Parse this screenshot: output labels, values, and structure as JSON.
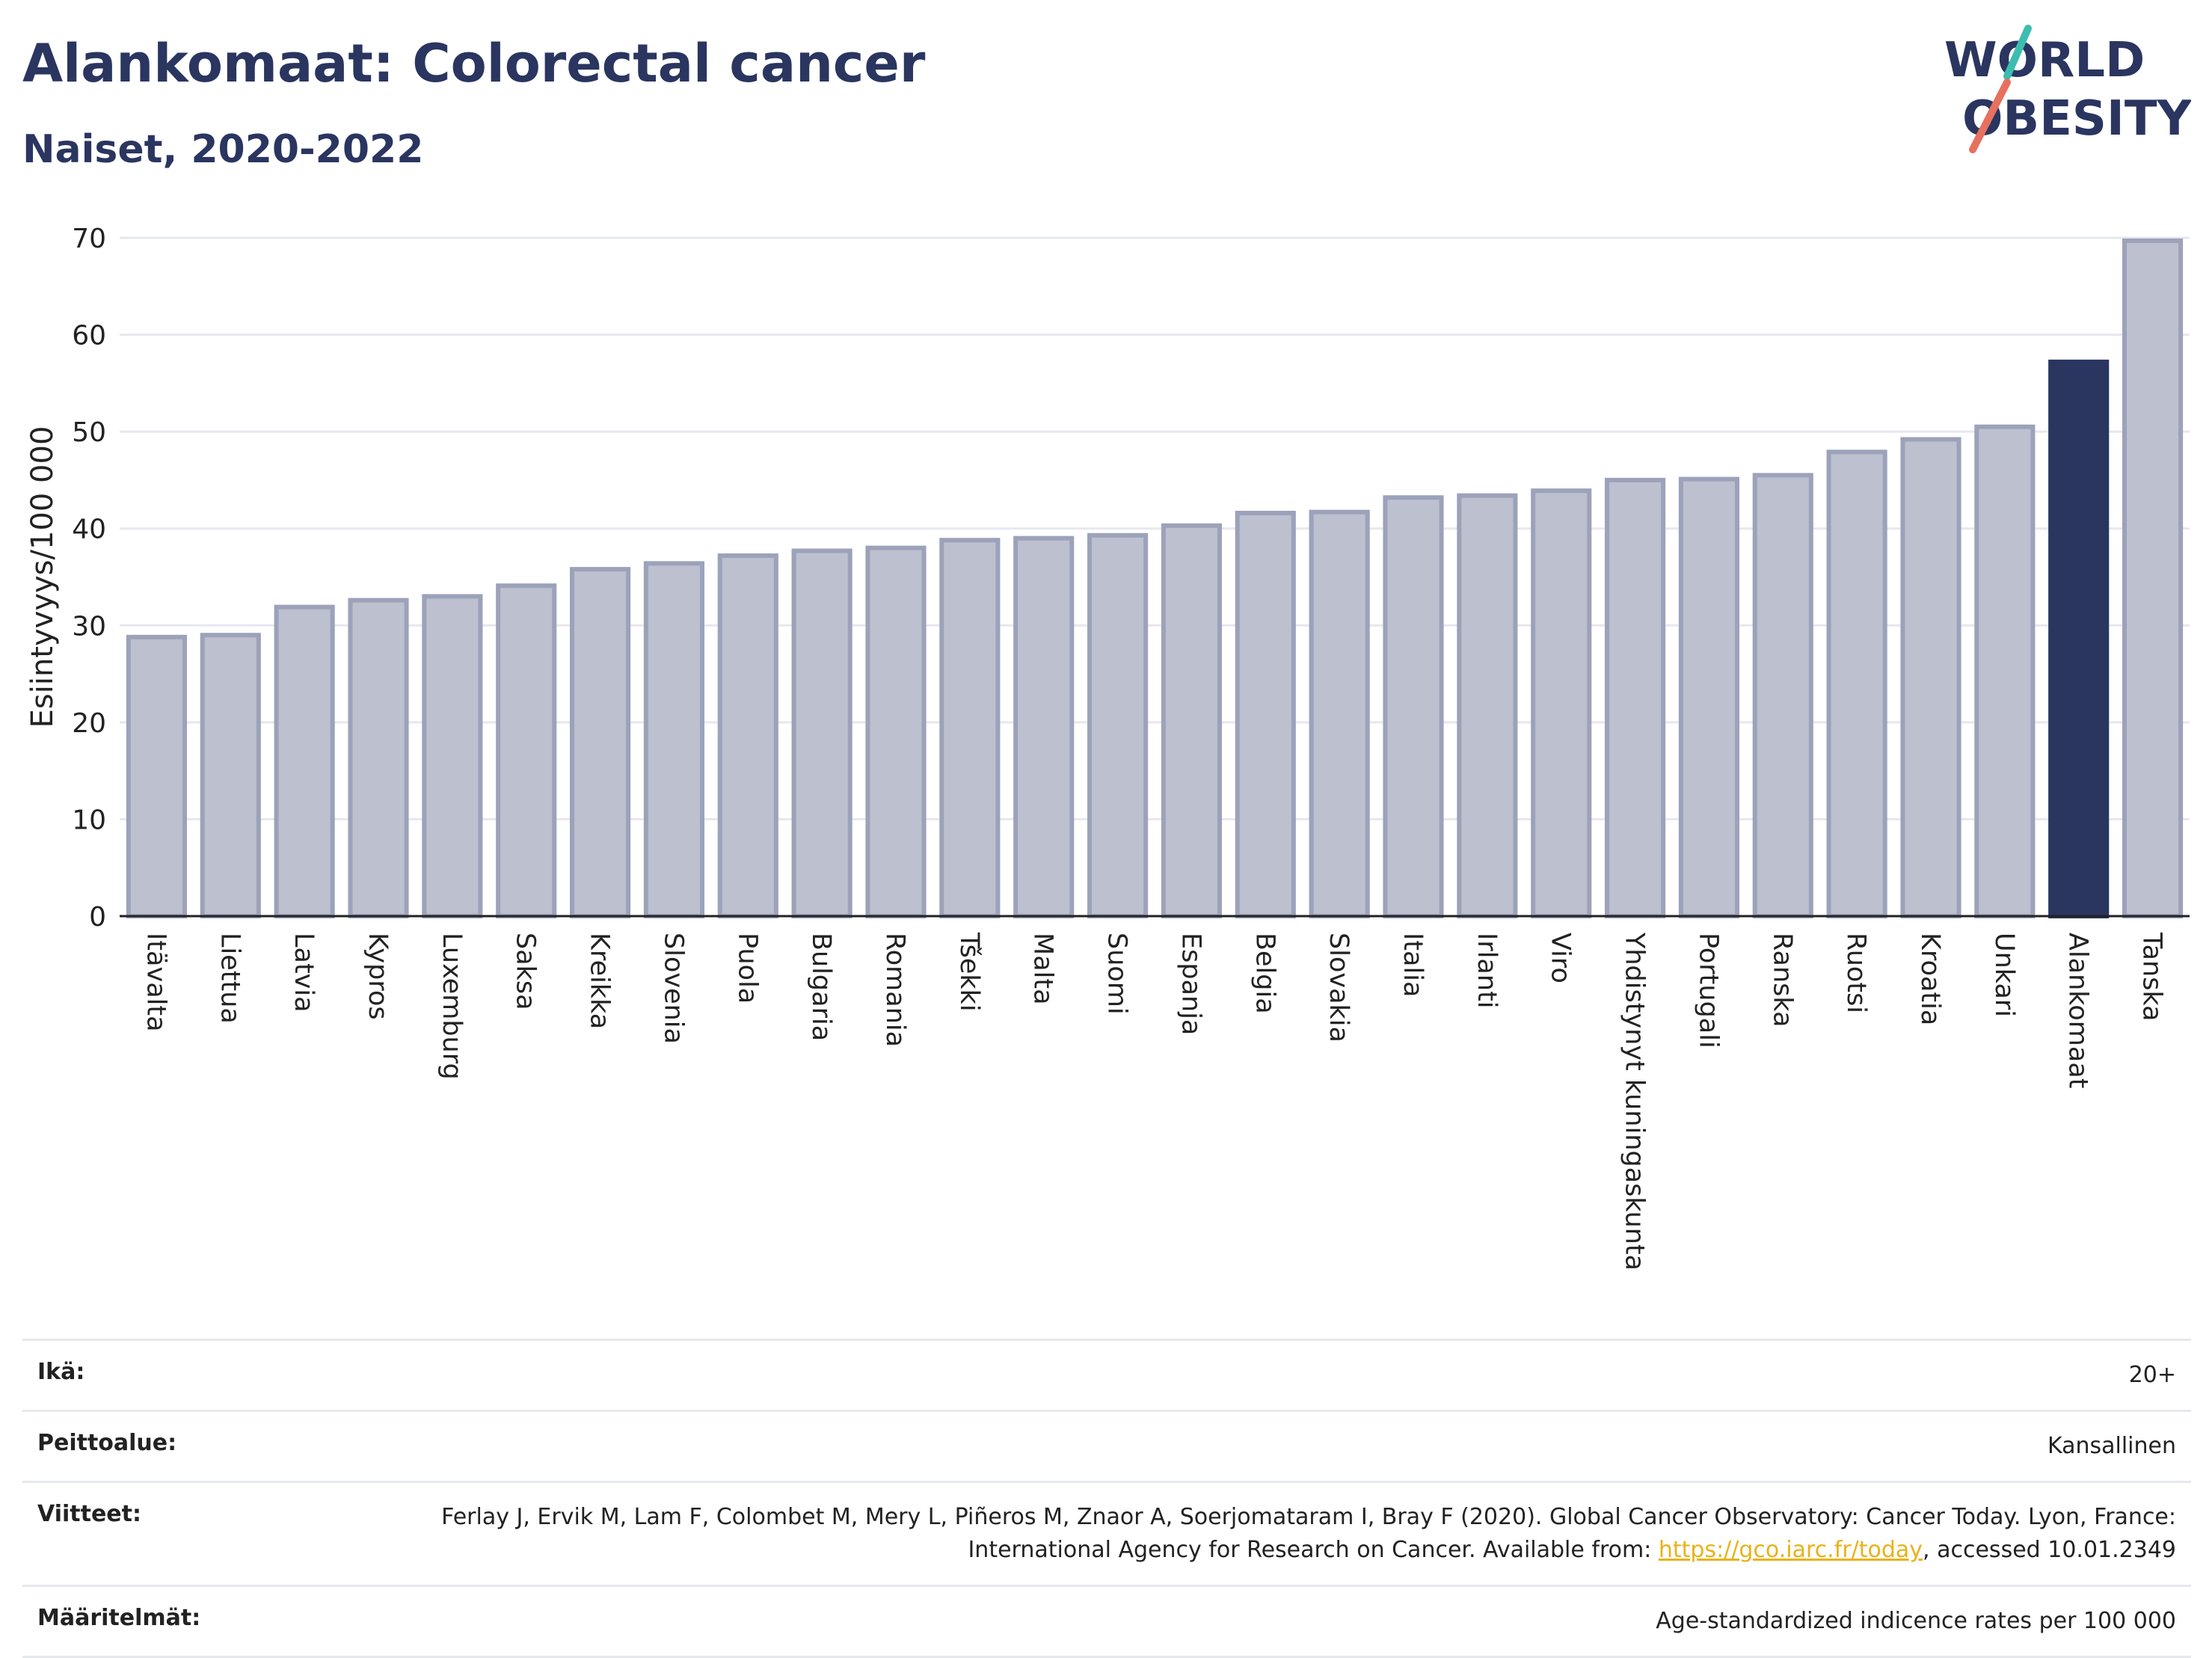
{
  "header": {
    "title": "Alankomaat: Colorectal cancer",
    "subtitle": "Naiset, 2020-2022"
  },
  "logo": {
    "line1": "WORLD",
    "line2": "OBESITY",
    "accent_teal": "#3dbdb0",
    "accent_red": "#e8705e"
  },
  "colors": {
    "bar_default": "#bcc0cf",
    "bar_border": "#9ca2ba",
    "bar_highlight": "#2a3560",
    "text": "#2a3560"
  },
  "chart_data": {
    "type": "bar",
    "title": "Alankomaat: Colorectal cancer",
    "subtitle": "Naiset, 2020-2022",
    "ylabel": "Esiintyvyys/100 000",
    "xlabel": "",
    "ylim": [
      0,
      70
    ],
    "yticks": [
      0,
      10,
      20,
      30,
      40,
      50,
      60,
      70
    ],
    "grid": true,
    "highlight": "Alankomaat",
    "categories": [
      "Itävalta",
      "Liettua",
      "Latvia",
      "Kypros",
      "Luxemburg",
      "Saksa",
      "Kreikka",
      "Slovenia",
      "Puola",
      "Bulgaria",
      "Romania",
      "Tšekki",
      "Malta",
      "Suomi",
      "Espanja",
      "Belgia",
      "Slovakia",
      "Italia",
      "Irlanti",
      "Viro",
      "Yhdistynyt kuningaskunta",
      "Portugali",
      "Ranska",
      "Ruotsi",
      "Kroatia",
      "Unkari",
      "Alankomaat",
      "Tanska"
    ],
    "values": [
      28.8,
      29.0,
      31.9,
      32.6,
      33.0,
      34.1,
      35.8,
      36.4,
      37.2,
      37.7,
      38.0,
      38.8,
      39.0,
      39.3,
      40.3,
      41.6,
      41.7,
      43.2,
      43.4,
      43.9,
      45.0,
      45.1,
      45.5,
      47.9,
      49.2,
      50.5,
      57.2,
      69.7
    ]
  },
  "meta": {
    "age_label": "Ikä:",
    "age_value": "20+",
    "coverage_label": "Peittoalue:",
    "coverage_value": "Kansallinen",
    "refs_label": "Viitteet:",
    "refs_text_1": "Ferlay J, Ervik M, Lam F, Colombet M, Mery L, Piñeros M, Znaor A, Soerjomataram I, Bray F (2020). Global Cancer Observatory: Cancer Today. Lyon, France: International Agency for Research on Cancer. Available from: ",
    "refs_link": "https://gco.iarc.fr/today",
    "refs_text_2": ", accessed 10.01.2349",
    "defs_label": "Määritelmät:",
    "defs_value": "Age-standardized indicence rates per 100 000"
  }
}
